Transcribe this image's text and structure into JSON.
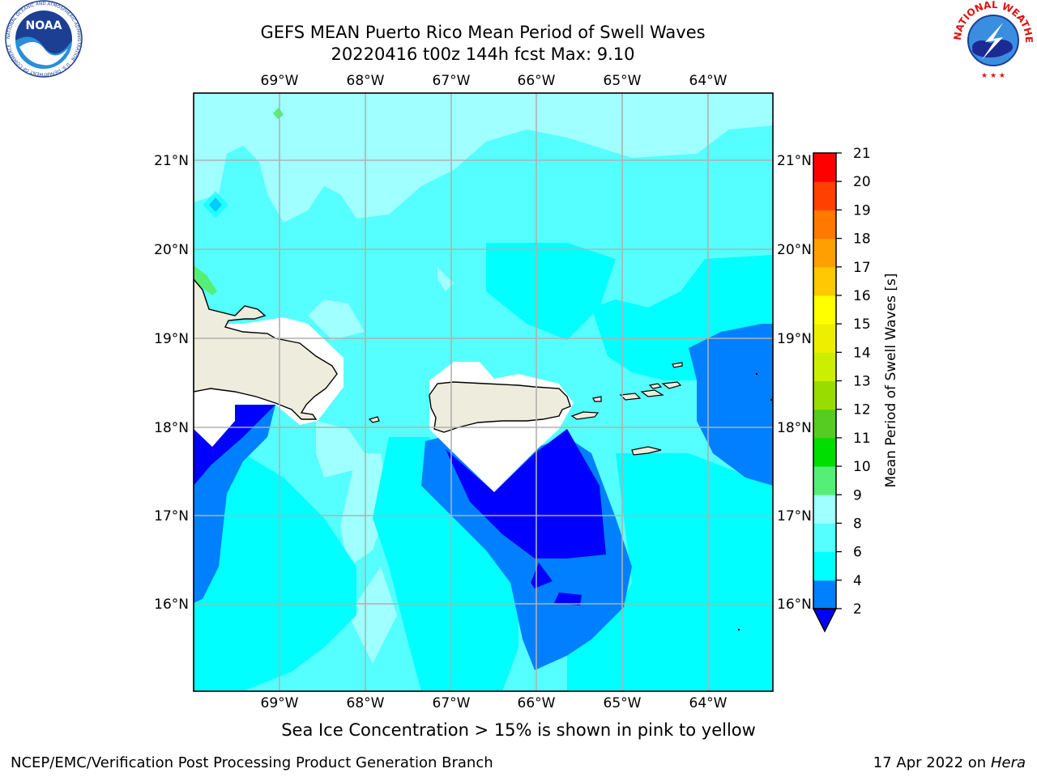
{
  "header": {
    "title_line1": "GEFS MEAN Puerto Rico Mean Period of Swell Waves",
    "title_line2": "20220416 t00z 144h fcst   Max: 9.10"
  },
  "logos": {
    "left": "NATIONAL OCEANIC AND ATMOSPHERIC ADMINISTRATION · U.S. DEPARTMENT OF COMMERCE",
    "left_mark": "NOAA",
    "right": "NATIONAL WEATHER SERVICE"
  },
  "map": {
    "lon_labels": [
      "69°W",
      "68°W",
      "67°W",
      "66°W",
      "65°W",
      "64°W"
    ],
    "lat_labels": [
      "21°N",
      "20°N",
      "19°N",
      "18°N",
      "17°N",
      "16°N"
    ],
    "extent": {
      "lon_min": -70.0,
      "lon_max": -63.25,
      "lat_min": 15.0,
      "lat_max": 21.75
    }
  },
  "colorbar": {
    "label": "Mean Period of Swell Waves [s]",
    "ticks": [
      "2",
      "4",
      "6",
      "8",
      "9",
      "10",
      "11",
      "12",
      "13",
      "14",
      "15",
      "16",
      "17",
      "18",
      "19",
      "20",
      "21"
    ],
    "colors": [
      "#0000ff",
      "#0080ff",
      "#00ffff",
      "#55ffff",
      "#a0ffff",
      "#55ee77",
      "#00dd00",
      "#55cc22",
      "#99dd00",
      "#ccee00",
      "#eeee00",
      "#ffff00",
      "#ffc800",
      "#ffa000",
      "#ff7800",
      "#ff4000",
      "#ff0000"
    ]
  },
  "note": "Sea Ice Concentration > 15% is shown in pink to yellow",
  "footer": {
    "left": "NCEP/EMC/Verification Post Processing Product Generation Branch",
    "right_prefix": "17 Apr 2022 on ",
    "right_italic": "Hera"
  }
}
